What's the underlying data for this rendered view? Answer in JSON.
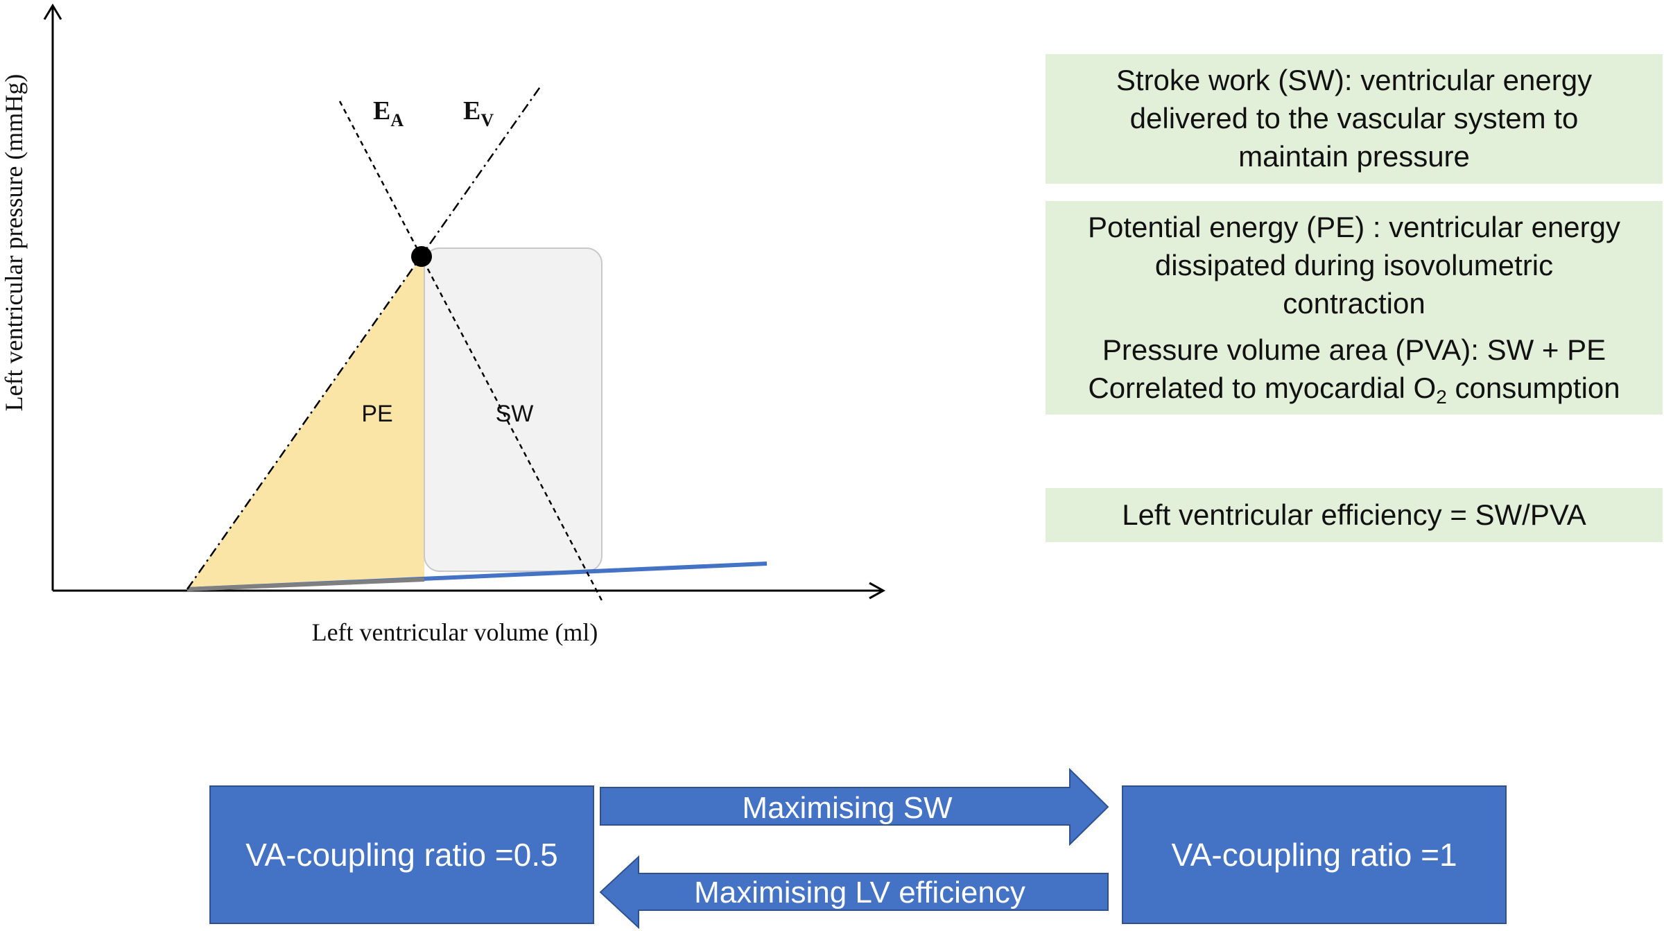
{
  "graph": {
    "y_axis_label": "Left ventricular pressure (mmHg)",
    "x_axis_label": "Left ventricular volume (ml)",
    "ea_label": {
      "main": "E",
      "sub": "A"
    },
    "ev_label": {
      "main": "E",
      "sub": "V"
    },
    "pe_label": "PE",
    "sw_label": "SW"
  },
  "info": {
    "sw_definition": [
      "Stroke work (SW): ventricular energy",
      "delivered to the vascular system to",
      "maintain pressure"
    ],
    "pe_definition": [
      "Potential energy (PE) : ventricular energy",
      "dissipated during isovolumetric",
      "contraction"
    ],
    "pva_definition": "Pressure volume area (PVA): SW + PE",
    "o2_line": {
      "before": "Correlated to myocardial O",
      "sub": "2",
      "after": " consumption"
    },
    "efficiency": "Left ventricular efficiency = SW/PVA"
  },
  "coupling": {
    "left_ratio": "VA-coupling ratio =0.5",
    "right_ratio": "VA-coupling ratio =1",
    "forward_arrow": "Maximising SW",
    "backward_arrow": "Maximising LV efficiency"
  },
  "colors": {
    "pe_fill": "#fbe5a6",
    "sw_fill": "#f2f2f2",
    "edpvr_line": "#4472c4",
    "box_blue": "#4472c4",
    "info_green": "#e2efd9"
  }
}
